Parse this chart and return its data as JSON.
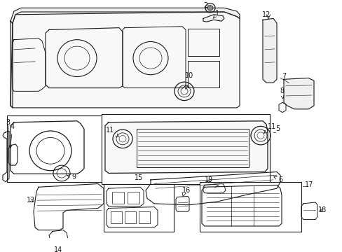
{
  "bg_color": "#ffffff",
  "lc": "#1a1a1a",
  "fs": 7.0,
  "fig_w": 4.89,
  "fig_h": 3.6,
  "dpi": 100
}
